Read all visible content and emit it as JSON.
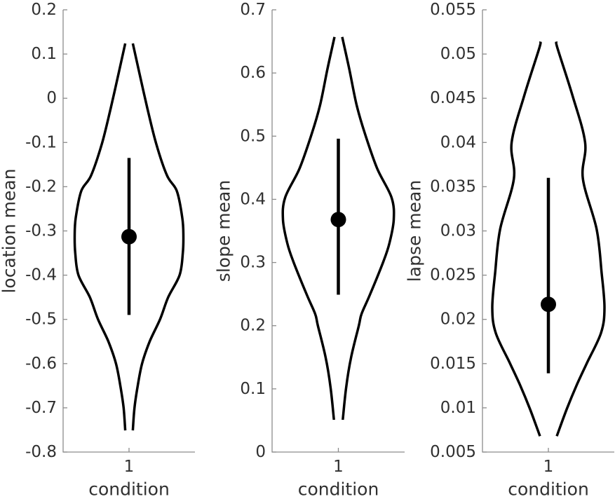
{
  "figure": {
    "background": "#ffffff",
    "axis_color": "#8c8c8c",
    "text_color": "#303030",
    "violin_color": "#000000"
  },
  "chart_data": {
    "type": "violin",
    "layout_hint": "three vertical violin subplots side by side, grid off, no legend, black outlines with mean dot and credible-interval bar",
    "plots": [
      {
        "ylabel": "location mean",
        "xlabel": "condition",
        "xtick_label": "1",
        "ylim": [
          -0.8,
          0.2
        ],
        "yticks": [
          "0.2",
          "0.1",
          "0",
          "-0.1",
          "-0.2",
          "-0.3",
          "-0.4",
          "-0.5",
          "-0.6",
          "-0.7",
          "-0.8"
        ],
        "mean": -0.313,
        "interval": [
          -0.49,
          -0.135
        ],
        "violin_range": [
          -0.751,
          0.124
        ],
        "density_profile": [
          [
            0.124,
            0.07
          ],
          [
            0.063,
            0.18
          ],
          [
            -0.024,
            0.34
          ],
          [
            -0.103,
            0.5
          ],
          [
            -0.175,
            0.7
          ],
          [
            -0.21,
            0.88
          ],
          [
            -0.27,
            0.98
          ],
          [
            -0.31,
            1.0
          ],
          [
            -0.35,
            0.99
          ],
          [
            -0.4,
            0.93
          ],
          [
            -0.45,
            0.72
          ],
          [
            -0.5,
            0.57
          ],
          [
            -0.55,
            0.38
          ],
          [
            -0.6,
            0.24
          ],
          [
            -0.65,
            0.16
          ],
          [
            -0.7,
            0.1
          ],
          [
            -0.751,
            0.07
          ]
        ]
      },
      {
        "ylabel": "slope mean",
        "xlabel": "condition",
        "xtick_label": "1",
        "ylim": [
          0,
          0.7
        ],
        "yticks": [
          "0.7",
          "0.6",
          "0.5",
          "0.4",
          "0.3",
          "0.2",
          "0.1",
          "0"
        ],
        "mean": 0.368,
        "interval": [
          0.249,
          0.496
        ],
        "violin_range": [
          0.051,
          0.657
        ],
        "density_profile": [
          [
            0.657,
            0.07
          ],
          [
            0.605,
            0.2
          ],
          [
            0.549,
            0.33
          ],
          [
            0.504,
            0.48
          ],
          [
            0.449,
            0.7
          ],
          [
            0.403,
            0.96
          ],
          [
            0.368,
            1.0
          ],
          [
            0.33,
            0.92
          ],
          [
            0.301,
            0.81
          ],
          [
            0.249,
            0.57
          ],
          [
            0.219,
            0.42
          ],
          [
            0.2,
            0.37
          ],
          [
            0.15,
            0.23
          ],
          [
            0.102,
            0.14
          ],
          [
            0.051,
            0.08
          ]
        ]
      },
      {
        "ylabel": "lapse mean",
        "xlabel": "condition",
        "xtick_label": "1",
        "ylim": [
          0.005,
          0.055
        ],
        "yticks": [
          "0.055",
          "0.05",
          "0.045",
          "0.04",
          "0.035",
          "0.03",
          "0.025",
          "0.02",
          "0.015",
          "0.01",
          "0.005"
        ],
        "mean": 0.0217,
        "interval": [
          0.0139,
          0.036
        ],
        "violin_range": [
          0.0068,
          0.0514
        ],
        "density_profile": [
          [
            0.0514,
            0.14
          ],
          [
            0.0505,
            0.17
          ],
          [
            0.0453,
            0.43
          ],
          [
            0.04,
            0.655
          ],
          [
            0.0359,
            0.615
          ],
          [
            0.0302,
            0.86
          ],
          [
            0.0252,
            0.95
          ],
          [
            0.0213,
            1.0
          ],
          [
            0.0185,
            0.94
          ],
          [
            0.0151,
            0.69
          ],
          [
            0.0125,
            0.5
          ],
          [
            0.0099,
            0.33
          ],
          [
            0.0068,
            0.15
          ]
        ]
      }
    ]
  }
}
